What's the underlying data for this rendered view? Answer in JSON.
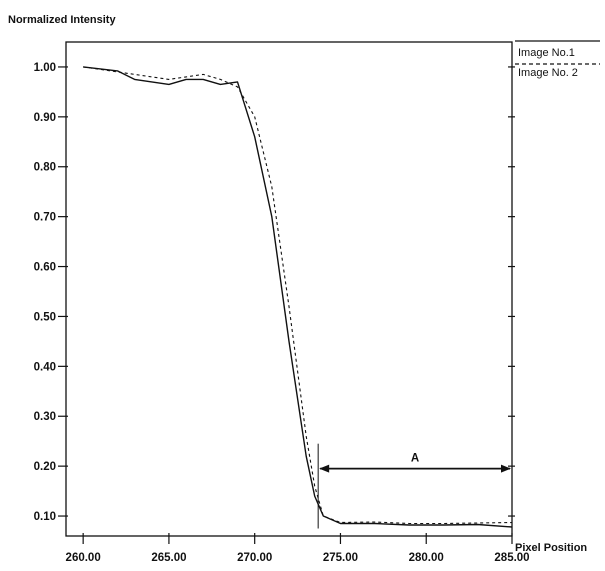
{
  "chart_data": {
    "type": "line",
    "title": "",
    "ylabel": "Normalized Intensity",
    "xlabel": "Pixel Position",
    "xlim": [
      259.0,
      285.0
    ],
    "ylim": [
      0.06,
      1.05
    ],
    "x_ticks": [
      260,
      265,
      270,
      275,
      280,
      285
    ],
    "x_tick_labels": [
      "260.00",
      "265.00",
      "270.00",
      "275.00",
      "280.00",
      "285.00"
    ],
    "y_ticks": [
      0.1,
      0.2,
      0.3,
      0.4,
      0.5,
      0.6,
      0.7,
      0.8,
      0.9,
      1.0
    ],
    "y_tick_labels": [
      "0.10",
      "0.20",
      "0.30",
      "0.40",
      "0.50",
      "0.60",
      "0.70",
      "0.80",
      "0.90",
      "1.00"
    ],
    "grid": false,
    "legend_position": "top-right outside",
    "series": [
      {
        "name": "Image No.1",
        "style": "solid",
        "color": "#111111",
        "x": [
          260.0,
          262.0,
          263.0,
          265.0,
          266.0,
          267.0,
          268.0,
          269.0,
          270.0,
          271.0,
          272.0,
          273.0,
          273.5,
          274.0,
          275.0,
          277.0,
          279.0,
          281.0,
          283.0,
          285.0
        ],
        "y": [
          1.0,
          0.992,
          0.975,
          0.965,
          0.975,
          0.975,
          0.965,
          0.97,
          0.86,
          0.7,
          0.45,
          0.22,
          0.14,
          0.1,
          0.085,
          0.085,
          0.082,
          0.082,
          0.083,
          0.078
        ]
      },
      {
        "name": "Image No. 2",
        "style": "dashed",
        "color": "#111111",
        "x": [
          260.0,
          262.0,
          263.0,
          265.0,
          266.0,
          267.0,
          268.0,
          269.0,
          270.0,
          271.0,
          272.0,
          273.0,
          273.5,
          274.0,
          275.0,
          277.0,
          279.0,
          281.0,
          283.0,
          285.0
        ],
        "y": [
          1.0,
          0.99,
          0.985,
          0.975,
          0.98,
          0.985,
          0.975,
          0.96,
          0.9,
          0.76,
          0.52,
          0.26,
          0.16,
          0.1,
          0.087,
          0.088,
          0.085,
          0.085,
          0.086,
          0.087
        ]
      }
    ],
    "annotations": [
      {
        "label": "A",
        "x_start": 273.7,
        "x_end": 285.0,
        "y": 0.195
      }
    ]
  }
}
